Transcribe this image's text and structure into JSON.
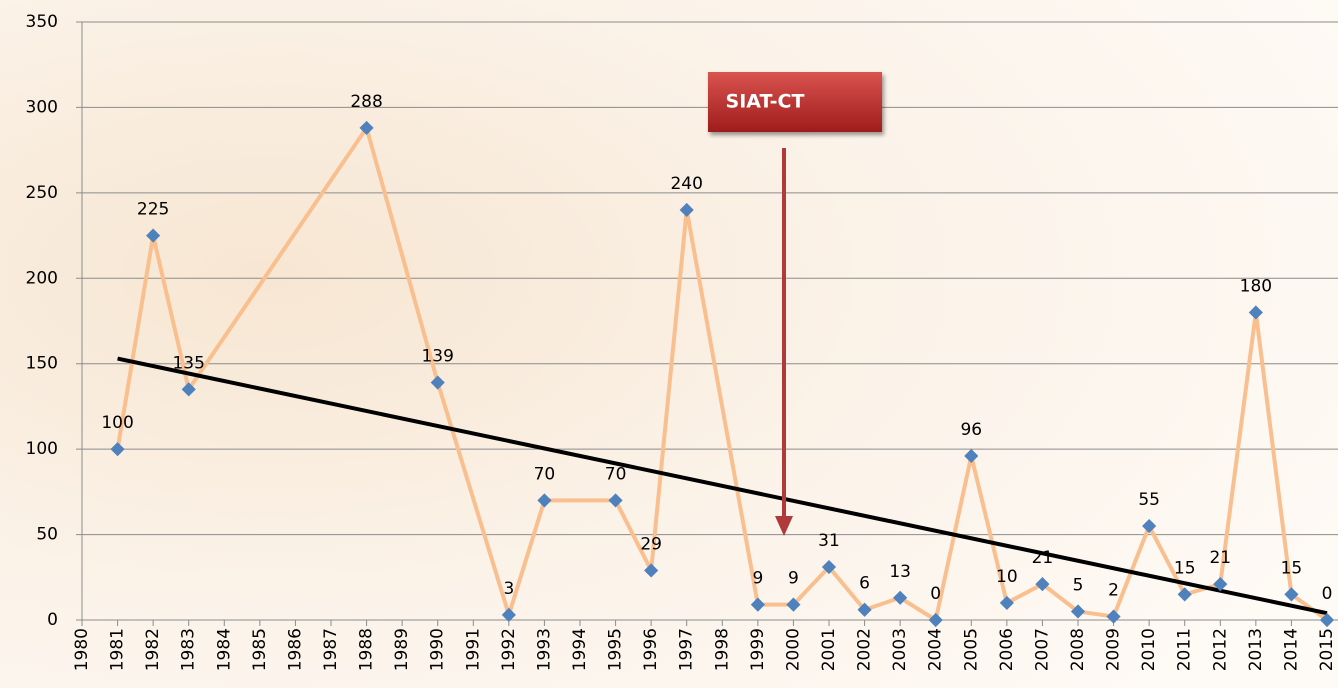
{
  "chart_data": {
    "type": "line",
    "x": [
      1981,
      1982,
      1983,
      1988,
      1990,
      1992,
      1993,
      1995,
      1996,
      1997,
      1999,
      2000,
      2001,
      2002,
      2003,
      2004,
      2005,
      2006,
      2007,
      2008,
      2009,
      2010,
      2011,
      2012,
      2013,
      2014,
      2015
    ],
    "values": [
      100,
      225,
      135,
      288,
      139,
      3,
      70,
      70,
      29,
      240,
      9,
      9,
      31,
      6,
      13,
      0,
      96,
      10,
      21,
      5,
      2,
      55,
      15,
      21,
      180,
      15,
      0
    ],
    "color": "#f9bf8f",
    "marker_color": "#4f81bd",
    "trend_line": {
      "x": [
        1981,
        2015
      ],
      "values": [
        153,
        4
      ],
      "color": "#000000"
    },
    "annotation": "SIAT-CT",
    "xlim": [
      1980,
      2015
    ],
    "xticks": [
      1980,
      1981,
      1982,
      1983,
      1984,
      1985,
      1986,
      1987,
      1988,
      1989,
      1990,
      1991,
      1992,
      1993,
      1994,
      1995,
      1996,
      1997,
      1998,
      1999,
      2000,
      2001,
      2002,
      2003,
      2004,
      2005,
      2006,
      2007,
      2008,
      2009,
      2010,
      2011,
      2012,
      2013,
      2014,
      2015
    ],
    "ylim": [
      0,
      350
    ],
    "yticks": [
      0,
      50,
      100,
      150,
      200,
      250,
      300,
      350
    ],
    "grid": true
  }
}
